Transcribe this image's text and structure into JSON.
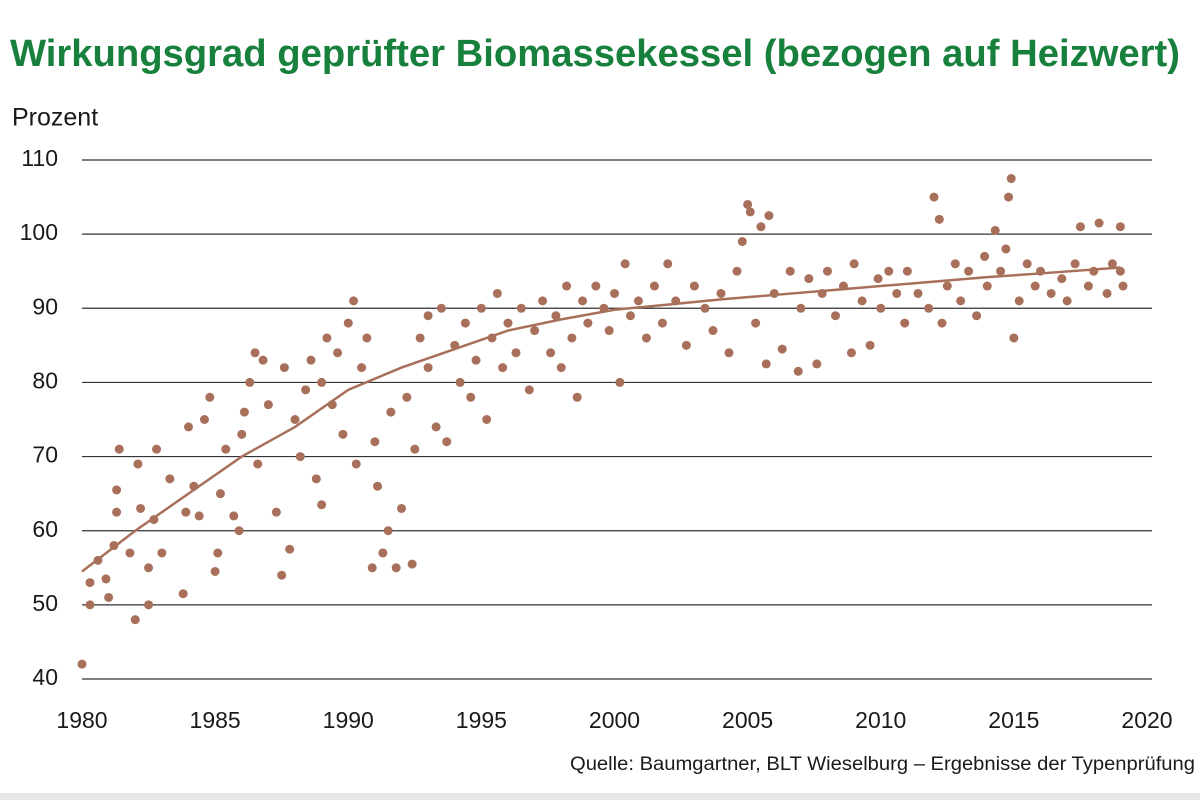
{
  "chart_data": {
    "type": "scatter",
    "title": "Wirkungsgrad geprüfter Biomassekessel (bezogen auf Heizwert)",
    "y_label": "Prozent",
    "source": "Quelle: Baumgartner, BLT Wieselburg – Ergebnisse der Typenprüfung",
    "xlim": [
      1980,
      2020
    ],
    "xticks": [
      1980,
      1985,
      1990,
      1995,
      2000,
      2005,
      2010,
      2015,
      2020
    ],
    "ylim": [
      40,
      110
    ],
    "yticks": [
      40,
      50,
      60,
      70,
      80,
      90,
      100,
      110
    ],
    "grid": true,
    "series": [
      {
        "mode": "markers",
        "color": "#a8705a",
        "x": [
          1980,
          1980.3,
          1980.3,
          1980.6,
          1980.9,
          1981,
          1981.2,
          1981.3,
          1981.3,
          1981.4,
          1981.8,
          1982,
          1982.1,
          1982.2,
          1982.5,
          1982.5,
          1982.7,
          1982.8,
          1983,
          1983.3,
          1983.8,
          1983.9,
          1984,
          1984.2,
          1984.4,
          1984.6,
          1984.8,
          1985,
          1985.1,
          1985.2,
          1985.4,
          1985.7,
          1985.9,
          1986,
          1986.1,
          1986.3,
          1986.5,
          1986.6,
          1986.8,
          1987,
          1987.3,
          1987.5,
          1987.6,
          1987.8,
          1988,
          1988.2,
          1988.4,
          1988.6,
          1988.8,
          1989,
          1989,
          1989.2,
          1989.4,
          1989.6,
          1989.8,
          1990,
          1990.2,
          1990.3,
          1990.5,
          1990.7,
          1990.9,
          1991,
          1991.1,
          1991.3,
          1991.5,
          1991.6,
          1991.8,
          1992,
          1992.2,
          1992.4,
          1992.5,
          1992.7,
          1993,
          1993,
          1993.3,
          1993.5,
          1993.7,
          1994,
          1994.2,
          1994.4,
          1994.6,
          1994.8,
          1995,
          1995.2,
          1995.4,
          1995.6,
          1995.8,
          1996,
          1996.3,
          1996.5,
          1996.8,
          1997,
          1997.3,
          1997.6,
          1997.8,
          1998,
          1998.2,
          1998.4,
          1998.6,
          1998.8,
          1999,
          1999.3,
          1999.6,
          1999.8,
          2000,
          2000.2,
          2000.4,
          2000.6,
          2000.9,
          2001.2,
          2001.5,
          2001.8,
          2002,
          2002.3,
          2002.7,
          2003,
          2003.4,
          2003.7,
          2004,
          2004.3,
          2004.6,
          2004.8,
          2005,
          2005.1,
          2005.3,
          2005.5,
          2005.7,
          2005.8,
          2006,
          2006.3,
          2006.6,
          2006.9,
          2007,
          2007.3,
          2007.6,
          2007.8,
          2008,
          2008.3,
          2008.6,
          2008.9,
          2009,
          2009.3,
          2009.6,
          2009.9,
          2010,
          2010.3,
          2010.6,
          2010.9,
          2011,
          2011.4,
          2011.8,
          2012,
          2012.2,
          2012.3,
          2012.5,
          2012.8,
          2013,
          2013.3,
          2013.6,
          2013.9,
          2014,
          2014.3,
          2014.5,
          2014.7,
          2014.8,
          2014.9,
          2015,
          2015.2,
          2015.5,
          2015.8,
          2016,
          2016.4,
          2016.8,
          2017,
          2017.3,
          2017.5,
          2017.8,
          2018,
          2018.2,
          2018.5,
          2018.7,
          2019,
          2019,
          2019.1
        ],
        "values": [
          42,
          50,
          53,
          56,
          53.5,
          51,
          58,
          62.5,
          65.5,
          71,
          57,
          48,
          69,
          63,
          50,
          55,
          61.5,
          71,
          57,
          67,
          51.5,
          62.5,
          74,
          66,
          62,
          75,
          78,
          54.5,
          57,
          65,
          71,
          62,
          60,
          73,
          76,
          80,
          84,
          69,
          83,
          77,
          62.5,
          54,
          82,
          57.5,
          75,
          70,
          79,
          83,
          67,
          63.5,
          80,
          86,
          77,
          84,
          73,
          88,
          91,
          69,
          82,
          86,
          55,
          72,
          66,
          57,
          60,
          76,
          55,
          63,
          78,
          55.5,
          71,
          86,
          82,
          89,
          74,
          90,
          72,
          85,
          80,
          88,
          78,
          83,
          90,
          75,
          86,
          92,
          82,
          88,
          84,
          90,
          79,
          87,
          91,
          84,
          89,
          82,
          93,
          86,
          78,
          91,
          88,
          93,
          90,
          87,
          92,
          80,
          96,
          89,
          91,
          86,
          93,
          88,
          96,
          91,
          85,
          93,
          90,
          87,
          92,
          84,
          95,
          99,
          104,
          103,
          88,
          101,
          82.5,
          102.5,
          92,
          84.5,
          95,
          81.5,
          90,
          94,
          82.5,
          92,
          95,
          89,
          93,
          84,
          96,
          91,
          85,
          94,
          90,
          95,
          92,
          88,
          95,
          92,
          90,
          105,
          102,
          88,
          93,
          96,
          91,
          95,
          89,
          97,
          93,
          100.5,
          95,
          98,
          105,
          107.5,
          86,
          91,
          96,
          93,
          95,
          92,
          94,
          91,
          96,
          101,
          93,
          95,
          101.5,
          92,
          96,
          101,
          95,
          93
        ]
      },
      {
        "mode": "line",
        "color": "#a8705a",
        "x": [
          1980,
          1982,
          1984,
          1986,
          1988,
          1990,
          1992,
          1994,
          1996,
          1998,
          2000,
          2002,
          2004,
          2006,
          2008,
          2010,
          2012,
          2014,
          2016,
          2019
        ],
        "values": [
          54.5,
          60,
          65,
          70,
          74,
          79,
          82,
          84.5,
          87,
          88.5,
          89.8,
          90.5,
          91.2,
          91.8,
          92.4,
          93,
          93.6,
          94.2,
          94.7,
          95.5
        ]
      }
    ]
  }
}
